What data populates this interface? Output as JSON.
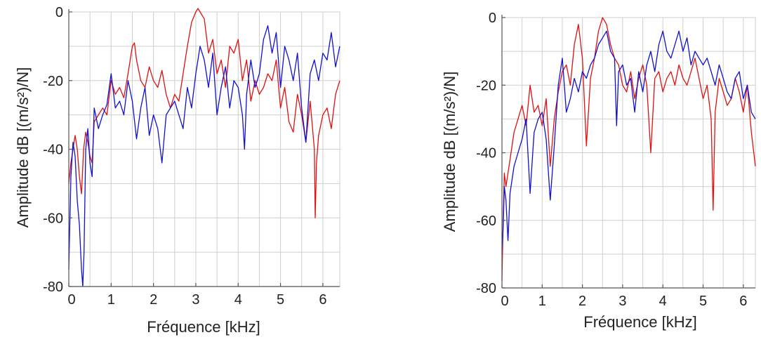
{
  "chart_data": [
    {
      "type": "line",
      "xlabel": "Fréquence [kHz]",
      "ylabel": "Amplitude dB [(m/s²)/N]",
      "xlim": [
        0,
        6.4
      ],
      "ylim": [
        -80,
        0
      ],
      "xticks": [
        0,
        1,
        2,
        3,
        4,
        5,
        6
      ],
      "yticks": [
        -80,
        -60,
        -40,
        -20,
        0
      ],
      "grid": true,
      "series": [
        {
          "color": "#e01010",
          "x": [
            0.0,
            0.05,
            0.1,
            0.15,
            0.2,
            0.25,
            0.3,
            0.35,
            0.4,
            0.45,
            0.5,
            0.55,
            0.6,
            0.7,
            0.8,
            0.9,
            1.0,
            1.1,
            1.2,
            1.3,
            1.4,
            1.5,
            1.55,
            1.6,
            1.7,
            1.8,
            1.9,
            2.0,
            2.1,
            2.2,
            2.3,
            2.4,
            2.5,
            2.6,
            2.7,
            2.8,
            2.9,
            3.0,
            3.05,
            3.1,
            3.2,
            3.3,
            3.4,
            3.5,
            3.6,
            3.7,
            3.8,
            3.9,
            4.0,
            4.1,
            4.2,
            4.3,
            4.4,
            4.5,
            4.6,
            4.7,
            4.8,
            4.9,
            5.0,
            5.1,
            5.2,
            5.3,
            5.4,
            5.5,
            5.6,
            5.7,
            5.8,
            5.82,
            5.85,
            5.9,
            6.0,
            6.1,
            6.2,
            6.3,
            6.4
          ],
          "y": [
            -50,
            -44,
            -40,
            -36,
            -40,
            -48,
            -53,
            -40,
            -35,
            -38,
            -42,
            -44,
            -32,
            -30,
            -28,
            -30,
            -20,
            -24,
            -22,
            -25,
            -18,
            -10,
            -9,
            -14,
            -20,
            -22,
            -16,
            -20,
            -22,
            -17,
            -24,
            -28,
            -24,
            -26,
            -18,
            -10,
            -3,
            0,
            1,
            0,
            -2,
            -12,
            -8,
            -18,
            -14,
            -22,
            -10,
            -12,
            -8,
            -20,
            -14,
            -26,
            -20,
            -24,
            -22,
            -18,
            -20,
            -14,
            -28,
            -22,
            -32,
            -35,
            -24,
            -30,
            -38,
            -26,
            -40,
            -60,
            -44,
            -36,
            -30,
            -28,
            -34,
            -24,
            -20
          ]
        },
        {
          "color": "#1010d0",
          "x": [
            0.0,
            0.05,
            0.1,
            0.15,
            0.2,
            0.25,
            0.3,
            0.33,
            0.36,
            0.4,
            0.45,
            0.5,
            0.55,
            0.6,
            0.7,
            0.8,
            0.9,
            1.0,
            1.1,
            1.2,
            1.3,
            1.4,
            1.5,
            1.6,
            1.7,
            1.8,
            1.9,
            2.0,
            2.1,
            2.2,
            2.3,
            2.4,
            2.5,
            2.6,
            2.7,
            2.8,
            2.9,
            3.0,
            3.1,
            3.2,
            3.3,
            3.4,
            3.5,
            3.6,
            3.7,
            3.8,
            3.9,
            4.0,
            4.1,
            4.15,
            4.2,
            4.3,
            4.4,
            4.5,
            4.6,
            4.7,
            4.8,
            4.9,
            5.0,
            5.1,
            5.2,
            5.3,
            5.4,
            5.5,
            5.6,
            5.7,
            5.8,
            5.9,
            6.0,
            6.1,
            6.2,
            6.3,
            6.4
          ],
          "y": [
            -75,
            -48,
            -38,
            -42,
            -55,
            -62,
            -75,
            -80,
            -70,
            -40,
            -34,
            -44,
            -48,
            -28,
            -34,
            -30,
            -27,
            -18,
            -28,
            -26,
            -30,
            -20,
            -26,
            -37,
            -28,
            -22,
            -36,
            -30,
            -34,
            -44,
            -30,
            -28,
            -26,
            -30,
            -34,
            -22,
            -28,
            -18,
            -10,
            -14,
            -22,
            -12,
            -30,
            -22,
            -16,
            -28,
            -20,
            -22,
            -30,
            -40,
            -24,
            -14,
            -22,
            -18,
            -8,
            -4,
            -12,
            -6,
            -22,
            -10,
            -14,
            -20,
            -12,
            -28,
            -38,
            -18,
            -14,
            -20,
            -12,
            -14,
            -6,
            -16,
            -10
          ]
        }
      ]
    },
    {
      "type": "line",
      "xlabel": "Fréquence [kHz]",
      "ylabel": "Amplitude dB [(m/s²)/N]",
      "xlim": [
        0,
        6.3
      ],
      "ylim": [
        -80,
        0
      ],
      "xticks": [
        0,
        1,
        2,
        3,
        4,
        5,
        6
      ],
      "yticks": [
        -80,
        -60,
        -40,
        -20,
        0
      ],
      "grid": true,
      "series": [
        {
          "color": "#e01010",
          "x": [
            0.0,
            0.03,
            0.06,
            0.1,
            0.2,
            0.3,
            0.4,
            0.5,
            0.6,
            0.7,
            0.8,
            0.9,
            1.0,
            1.1,
            1.2,
            1.3,
            1.4,
            1.5,
            1.6,
            1.7,
            1.8,
            1.9,
            2.0,
            2.1,
            2.2,
            2.3,
            2.4,
            2.5,
            2.6,
            2.7,
            2.8,
            2.9,
            3.0,
            3.1,
            3.2,
            3.3,
            3.4,
            3.5,
            3.6,
            3.7,
            3.8,
            3.9,
            4.0,
            4.1,
            4.2,
            4.3,
            4.4,
            4.5,
            4.6,
            4.7,
            4.8,
            4.9,
            5.0,
            5.1,
            5.2,
            5.25,
            5.3,
            5.4,
            5.5,
            5.6,
            5.7,
            5.8,
            5.9,
            6.0,
            6.1,
            6.2,
            6.3
          ],
          "y": [
            -78,
            -60,
            -46,
            -50,
            -42,
            -34,
            -30,
            -26,
            -32,
            -20,
            -28,
            -26,
            -32,
            -24,
            -44,
            -30,
            -22,
            -16,
            -14,
            -20,
            -8,
            -2,
            -12,
            -38,
            -18,
            -12,
            -4,
            0,
            -2,
            -8,
            -12,
            -14,
            -20,
            -22,
            -16,
            -24,
            -18,
            -14,
            -20,
            -40,
            -18,
            -16,
            -22,
            -18,
            -16,
            -20,
            -14,
            -18,
            -20,
            -16,
            -12,
            -18,
            -24,
            -20,
            -30,
            -57,
            -28,
            -18,
            -22,
            -26,
            -24,
            -18,
            -22,
            -28,
            -20,
            -34,
            -44
          ]
        },
        {
          "color": "#1010d0",
          "x": [
            0.0,
            0.03,
            0.06,
            0.1,
            0.15,
            0.2,
            0.3,
            0.4,
            0.5,
            0.6,
            0.7,
            0.8,
            0.9,
            1.0,
            1.1,
            1.2,
            1.3,
            1.4,
            1.5,
            1.6,
            1.7,
            1.8,
            1.9,
            2.0,
            2.1,
            2.2,
            2.3,
            2.4,
            2.5,
            2.6,
            2.7,
            2.8,
            2.85,
            2.9,
            3.0,
            3.1,
            3.2,
            3.3,
            3.4,
            3.5,
            3.6,
            3.7,
            3.8,
            3.9,
            4.0,
            4.1,
            4.2,
            4.3,
            4.4,
            4.5,
            4.6,
            4.7,
            4.8,
            4.9,
            5.0,
            5.1,
            5.2,
            5.3,
            5.4,
            5.5,
            5.6,
            5.7,
            5.8,
            5.9,
            6.0,
            6.1,
            6.2,
            6.3
          ],
          "y": [
            -70,
            -62,
            -50,
            -54,
            -66,
            -52,
            -44,
            -40,
            -36,
            -30,
            -52,
            -34,
            -30,
            -28,
            -36,
            -54,
            -38,
            -20,
            -12,
            -28,
            -24,
            -18,
            -22,
            -16,
            -18,
            -14,
            -12,
            -8,
            -6,
            -4,
            -10,
            -12,
            -32,
            -16,
            -14,
            -20,
            -18,
            -28,
            -16,
            -22,
            -14,
            -10,
            -16,
            -8,
            -4,
            -10,
            -12,
            -8,
            -4,
            -10,
            -6,
            -14,
            -10,
            -12,
            -14,
            -12,
            -16,
            -20,
            -14,
            -18,
            -22,
            -24,
            -18,
            -16,
            -24,
            -20,
            -28,
            -30
          ]
        }
      ]
    }
  ]
}
